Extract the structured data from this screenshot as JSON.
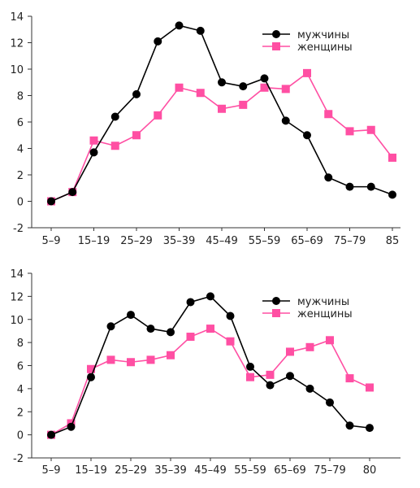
{
  "chart_data": [
    {
      "type": "line",
      "title": "",
      "xlabel": "",
      "ylabel": "",
      "ylim": [
        -2,
        14
      ],
      "yticks": [
        -2,
        0,
        2,
        4,
        6,
        8,
        10,
        12,
        14
      ],
      "xtick_labels": [
        "5–9",
        "15–19",
        "25–29",
        "35–39",
        "45–49",
        "55–59",
        "65–69",
        "75–79",
        "85"
      ],
      "legend_position": "top-right",
      "grid": false,
      "series": [
        {
          "name": "мужчины",
          "color": "#000000",
          "marker": "circle",
          "values": [
            0.0,
            0.7,
            3.7,
            6.4,
            8.1,
            12.1,
            13.3,
            12.9,
            9.0,
            8.7,
            9.3,
            6.1,
            5.0,
            1.8,
            1.1,
            1.1,
            0.5
          ]
        },
        {
          "name": "женщины",
          "color": "#ff4fa3",
          "marker": "square",
          "values": [
            0.0,
            0.7,
            4.6,
            4.2,
            5.0,
            6.5,
            8.6,
            8.2,
            7.0,
            7.3,
            8.6,
            8.5,
            9.7,
            6.6,
            5.3,
            5.4,
            3.3
          ]
        }
      ]
    },
    {
      "type": "line",
      "title": "",
      "xlabel": "",
      "ylabel": "",
      "ylim": [
        -2,
        14
      ],
      "yticks": [
        -2,
        0,
        2,
        4,
        6,
        8,
        10,
        12,
        14
      ],
      "xtick_labels": [
        "5–9",
        "15–19",
        "25–29",
        "35–39",
        "45–49",
        "55–59",
        "65–69",
        "75–79",
        "80"
      ],
      "legend_position": "top-right",
      "grid": false,
      "series": [
        {
          "name": "мужчины",
          "color": "#000000",
          "marker": "circle",
          "values": [
            0.0,
            0.7,
            5.0,
            9.4,
            10.4,
            9.2,
            8.9,
            11.5,
            12.0,
            10.3,
            5.9,
            4.3,
            5.1,
            4.0,
            2.8,
            0.8,
            0.6
          ]
        },
        {
          "name": "женщины",
          "color": "#ff4fa3",
          "marker": "square",
          "values": [
            0.0,
            1.0,
            5.7,
            6.5,
            6.3,
            6.5,
            6.9,
            8.5,
            9.2,
            8.1,
            5.0,
            5.2,
            7.2,
            7.6,
            8.2,
            4.9,
            4.1
          ]
        }
      ]
    }
  ]
}
